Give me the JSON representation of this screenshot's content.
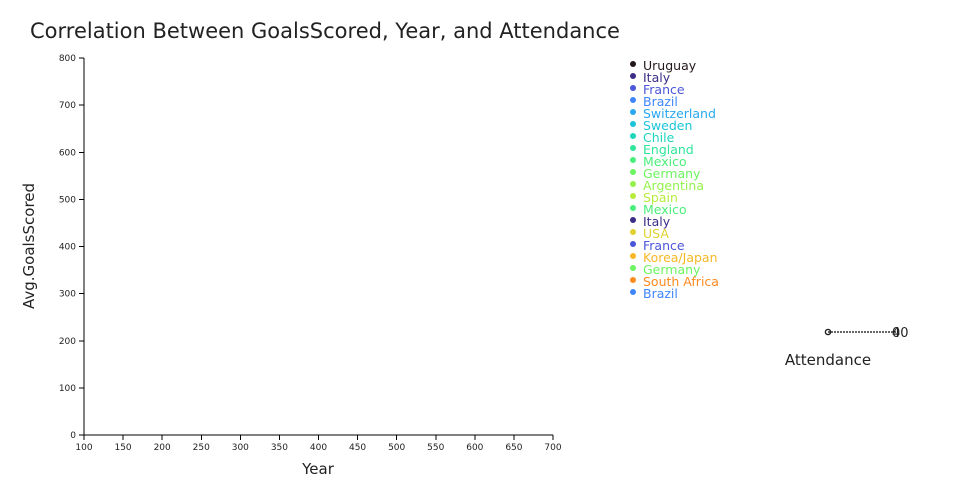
{
  "chart_data": {
    "type": "scatter",
    "title": "Correlation Between GoalsScored, Year, and Attendance",
    "xlabel": "Year",
    "ylabel": "Avg.GoalsScored",
    "xlim": [
      100,
      700
    ],
    "ylim": [
      0,
      800
    ],
    "x_ticks": [
      100,
      150,
      200,
      250,
      300,
      350,
      400,
      450,
      500,
      550,
      600,
      650,
      700
    ],
    "y_ticks": [
      0,
      100,
      200,
      300,
      400,
      500,
      600,
      700,
      800
    ],
    "points": [],
    "legend_position": "top-right",
    "series": [
      {
        "name": "Uruguay",
        "color": "#23171b"
      },
      {
        "name": "Italy",
        "color": "#3c2e88"
      },
      {
        "name": "France",
        "color": "#4b56d9"
      },
      {
        "name": "Brazil",
        "color": "#3f86fe"
      },
      {
        "name": "Switzerland",
        "color": "#27a8f0"
      },
      {
        "name": "Sweden",
        "color": "#1cc4d9"
      },
      {
        "name": "Chile",
        "color": "#1bd6bd"
      },
      {
        "name": "England",
        "color": "#2ee59a"
      },
      {
        "name": "Mexico",
        "color": "#49ef7a"
      },
      {
        "name": "Germany",
        "color": "#6cf55f"
      },
      {
        "name": "Argentina",
        "color": "#94f34b"
      },
      {
        "name": "Spain",
        "color": "#b7ec3d"
      },
      {
        "name": "Mexico",
        "color": "#49ef7a"
      },
      {
        "name": "Italy",
        "color": "#3c2e88"
      },
      {
        "name": "USA",
        "color": "#e1d22e"
      },
      {
        "name": "France",
        "color": "#4b56d9"
      },
      {
        "name": "Korea/Japan",
        "color": "#f6b824"
      },
      {
        "name": "Germany",
        "color": "#6cf55f"
      },
      {
        "name": "South Africa",
        "color": "#fb8a1f"
      },
      {
        "name": "Brazil",
        "color": "#3f86fe"
      }
    ],
    "size_legend": {
      "title": "Attendance",
      "values": [
        "0",
        "40"
      ]
    }
  }
}
